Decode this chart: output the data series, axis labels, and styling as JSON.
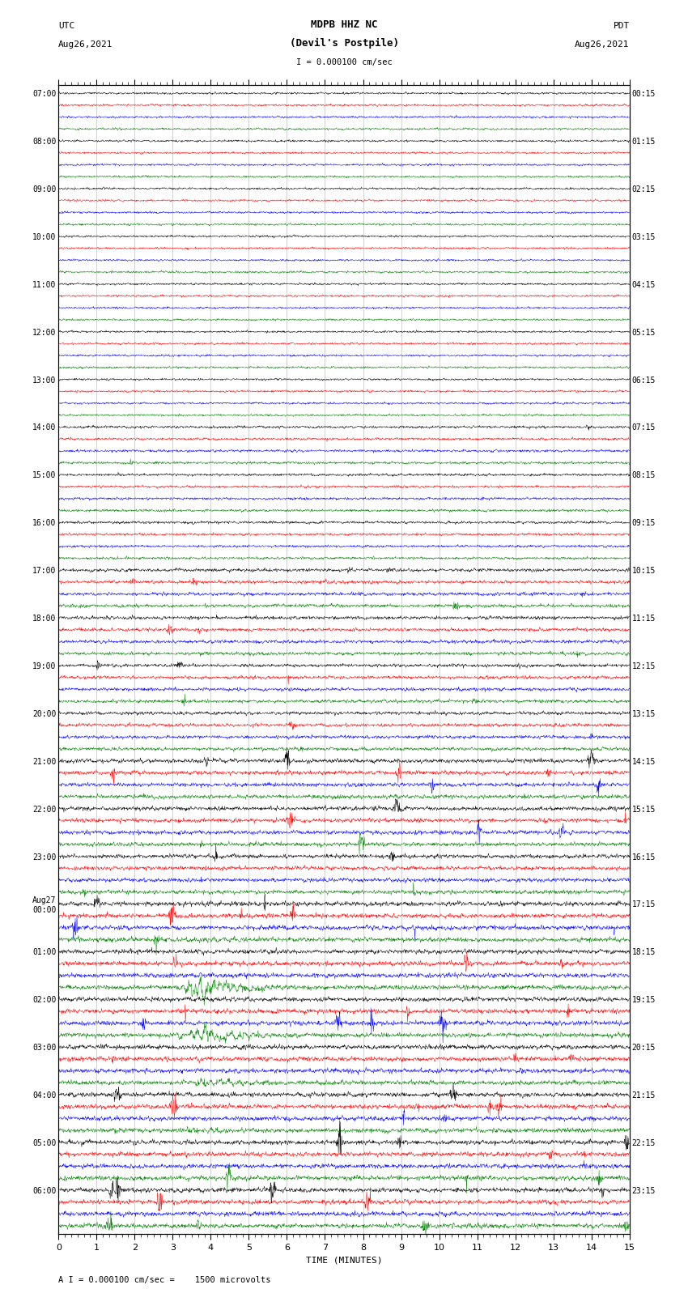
{
  "title_line1": "MDPB HHZ NC",
  "title_line2": "(Devil's Postpile)",
  "scale_text": "I = 0.000100 cm/sec",
  "utc_label": "UTC",
  "utc_date": "Aug26,2021",
  "pdt_label": "PDT",
  "pdt_date": "Aug26,2021",
  "xlabel": "TIME (MINUTES)",
  "footer": "A I = 0.000100 cm/sec =    1500 microvolts",
  "left_times": [
    "07:00",
    "08:00",
    "09:00",
    "10:00",
    "11:00",
    "12:00",
    "13:00",
    "14:00",
    "15:00",
    "16:00",
    "17:00",
    "18:00",
    "19:00",
    "20:00",
    "21:00",
    "22:00",
    "23:00",
    "Aug27\n00:00",
    "01:00",
    "02:00",
    "03:00",
    "04:00",
    "05:00",
    "06:00"
  ],
  "right_times": [
    "00:15",
    "01:15",
    "02:15",
    "03:15",
    "04:15",
    "05:15",
    "06:15",
    "07:15",
    "08:15",
    "09:15",
    "10:15",
    "11:15",
    "12:15",
    "13:15",
    "14:15",
    "15:15",
    "16:15",
    "17:15",
    "18:15",
    "19:15",
    "20:15",
    "21:15",
    "22:15",
    "23:15"
  ],
  "n_rows": 96,
  "n_cols": 1800,
  "trace_color_cycle": [
    "black",
    "red",
    "blue",
    "green"
  ],
  "bg_color": "white",
  "xmin": 0,
  "xmax": 15,
  "figwidth": 8.5,
  "figheight": 16.13,
  "dpi": 100
}
